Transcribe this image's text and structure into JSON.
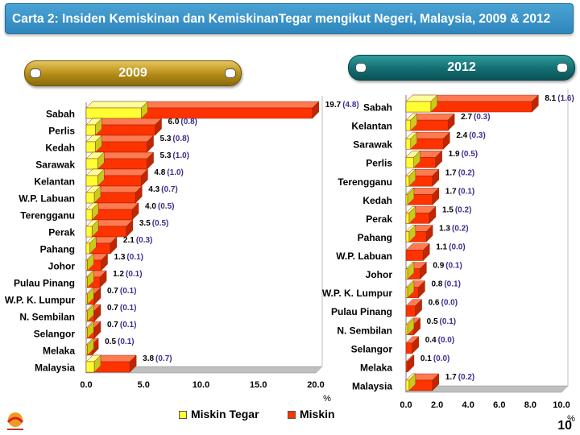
{
  "title": "Carta 2: Insiden Kemiskinan dan KemiskinanTegar mengikut Negeri, Malaysia, 2009 & 2012",
  "page_number": "10",
  "colors": {
    "title_bar": "#3593c8",
    "miskin": "#ff3300",
    "miskin_tegar": "#ffff33",
    "value_text": "#000000",
    "tegar_value_text": "#3b2f8f"
  },
  "legend": {
    "miskin_tegar": "Miskin Tegar",
    "miskin": "Miskin"
  },
  "chart_data": [
    {
      "type": "bar",
      "orientation": "horizontal",
      "year_label": "2009",
      "xlabel": "%",
      "xlim": [
        0,
        20
      ],
      "xticks": [
        "0.0",
        "5.0",
        "10.0",
        "15.0",
        "20.0"
      ],
      "categories": [
        "Sabah",
        "Perlis",
        "Kedah",
        "Sarawak",
        "Kelantan",
        "W.P. Labuan",
        "Terengganu",
        "Perak",
        "Pahang",
        "Johor",
        "Pulau Pinang",
        "W.P. K. Lumpur",
        "N. Sembilan",
        "Selangor",
        "Melaka",
        "Malaysia"
      ],
      "series": [
        {
          "name": "Miskin",
          "values": [
            19.7,
            6.0,
            5.3,
            5.3,
            4.8,
            4.3,
            4.0,
            3.5,
            2.1,
            1.3,
            1.2,
            0.7,
            0.7,
            0.7,
            0.5,
            3.8
          ]
        },
        {
          "name": "Miskin Tegar",
          "values": [
            4.8,
            0.8,
            0.8,
            1.0,
            1.0,
            0.7,
            0.5,
            0.5,
            0.3,
            0.1,
            0.1,
            0.1,
            0.1,
            0.1,
            0.1,
            0.7
          ]
        }
      ],
      "labels_main": [
        "19.7",
        "6.0",
        "5.3",
        "5.3",
        "4.8",
        "4.3",
        "4.0",
        "3.5",
        "2.1",
        "1.3",
        "1.2",
        "0.7",
        "0.7",
        "0.7",
        "0.5",
        "3.8"
      ],
      "labels_tegar": [
        "(4.8)",
        "(0.8)",
        "(0.8)",
        "(1.0)",
        "(1.0)",
        "(0.7)",
        "(0.5)",
        "(0.5)",
        "(0.3)",
        "(0.1)",
        "(0.1)",
        "(0.1)",
        "(0.1)",
        "(0.1)",
        "(0.1)",
        "(0.7)"
      ]
    },
    {
      "type": "bar",
      "orientation": "horizontal",
      "year_label": "2012",
      "xlabel": "%",
      "xlim": [
        0,
        10
      ],
      "xticks": [
        "0.0",
        "2.0",
        "4.0",
        "6.0",
        "8.0",
        "10.0"
      ],
      "categories": [
        "Sabah",
        "Kelantan",
        "Sarawak",
        "Perlis",
        "Terengganu",
        "Kedah",
        "Perak",
        "Pahang",
        "W.P. Labuan",
        "Johor",
        "W.P. K. Lumpur",
        "Pulau Pinang",
        "N. Sembilan",
        "Selangor",
        "Melaka",
        "Malaysia"
      ],
      "series": [
        {
          "name": "Miskin",
          "values": [
            8.1,
            2.7,
            2.4,
            1.9,
            1.7,
            1.7,
            1.5,
            1.3,
            1.1,
            0.9,
            0.8,
            0.6,
            0.5,
            0.4,
            0.1,
            1.7
          ]
        },
        {
          "name": "Miskin Tegar",
          "values": [
            1.6,
            0.3,
            0.3,
            0.5,
            0.2,
            0.1,
            0.2,
            0.2,
            0.0,
            0.1,
            0.1,
            0.0,
            0.1,
            0.0,
            0.0,
            0.2
          ]
        }
      ],
      "labels_main": [
        "8.1",
        "2.7",
        "2.4",
        "1.9",
        "1.7",
        "1.7",
        "1.5",
        "1.3",
        "1.1",
        "0.9",
        "0.8",
        "0.6",
        "0.5",
        "0.4",
        "0.1",
        "1.7"
      ],
      "labels_tegar": [
        "(1.6)",
        "(0.3)",
        "(0.3)",
        "(0.5)",
        "(0.2)",
        "(0.1)",
        "(0.2)",
        "(0.2)",
        "(0.0)",
        "(0.1)",
        "(0.1)",
        "(0.0)",
        "(0.1)",
        "(0.0)",
        "(0.0)",
        "(0.2)"
      ]
    }
  ]
}
